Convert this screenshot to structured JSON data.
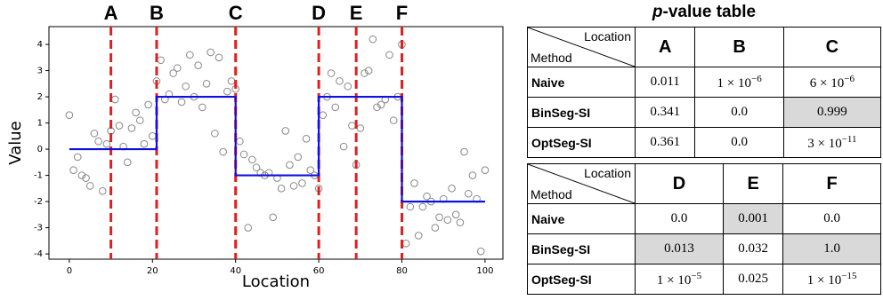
{
  "chart_data": {
    "type": "scatter",
    "xlabel": "Location",
    "ylabel": "Value",
    "xlim": [
      -4.9,
      104.3
    ],
    "ylim": [
      -4.2,
      4.68
    ],
    "xticks": [
      0,
      20,
      40,
      60,
      80,
      100
    ],
    "yticks": [
      -4,
      -3,
      -2,
      -1,
      0,
      1,
      2,
      3,
      4
    ],
    "series": [
      {
        "kind": "points",
        "color": "#888888",
        "x": [
          0,
          1,
          2,
          3,
          4,
          5,
          6,
          7,
          8,
          9,
          10,
          11,
          12,
          13,
          14,
          15,
          16,
          17,
          18,
          19,
          20,
          21,
          22,
          23,
          24,
          25,
          26,
          27,
          28,
          29,
          30,
          31,
          32,
          33,
          34,
          35,
          36,
          37,
          38,
          39,
          40,
          41,
          42,
          43,
          44,
          45,
          46,
          47,
          48,
          49,
          50,
          51,
          52,
          53,
          54,
          55,
          56,
          57,
          58,
          59,
          60,
          61,
          62,
          63,
          64,
          65,
          66,
          67,
          68,
          69,
          70,
          71,
          72,
          73,
          74,
          75,
          76,
          77,
          78,
          79,
          80,
          81,
          82,
          83,
          84,
          85,
          86,
          87,
          88,
          89,
          90,
          91,
          92,
          93,
          94,
          95,
          96,
          97,
          98,
          99,
          100
        ],
        "values": [
          1.3,
          -0.8,
          -0.3,
          -1.0,
          -1.1,
          -1.4,
          0.6,
          0.3,
          -1.6,
          0.2,
          0.7,
          1.9,
          0.9,
          0.1,
          -0.5,
          0.8,
          1.4,
          1.1,
          0.2,
          1.7,
          0.5,
          2.6,
          3.4,
          1.9,
          2.1,
          2.9,
          3.1,
          1.8,
          2.4,
          3.6,
          2.0,
          3.2,
          1.6,
          2.5,
          3.7,
          0.6,
          3.5,
          -0.1,
          2.2,
          2.6,
          2.3,
          0.3,
          -0.2,
          -3.0,
          -0.4,
          -0.7,
          -0.9,
          -1.0,
          -0.9,
          -2.6,
          -1.1,
          -1.5,
          0.7,
          -0.6,
          -1.4,
          -0.3,
          -1.3,
          0.4,
          -0.8,
          -1.0,
          -1.5,
          1.3,
          2.0,
          2.9,
          1.6,
          2.6,
          0.1,
          2.4,
          0.9,
          -0.6,
          0.8,
          2.9,
          3.0,
          4.2,
          1.6,
          1.7,
          1.9,
          3.6,
          1.1,
          2.0,
          4.0,
          -3.6,
          -2.2,
          -1.3,
          -3.3,
          -2.2,
          -1.8,
          -2.0,
          -3.0,
          -2.6,
          -1.9,
          -2.7,
          -1.5,
          -2.5,
          -2.8,
          -0.1,
          -1.7,
          -1.0,
          -1.9,
          -3.9,
          -0.8
        ]
      },
      {
        "kind": "line",
        "color": "#1010e0",
        "x": [
          0,
          21,
          21,
          40,
          40,
          60,
          60,
          80,
          80,
          100
        ],
        "values": [
          0,
          0,
          2,
          2,
          -1,
          -1,
          2,
          2,
          -2,
          -2
        ]
      }
    ],
    "vlines": {
      "color": "#e02020",
      "items": [
        {
          "x": 10,
          "label": "A"
        },
        {
          "x": 21,
          "label": "B"
        },
        {
          "x": 40,
          "label": "C"
        },
        {
          "x": 60,
          "label": "D"
        },
        {
          "x": 69,
          "label": "E"
        },
        {
          "x": 80,
          "label": "F"
        }
      ]
    }
  },
  "tables": {
    "title": {
      "italic": "p",
      "rest": "-value table"
    },
    "corner": {
      "top": "Location",
      "bottom": "Method"
    },
    "list": [
      {
        "columns": [
          "A",
          "B",
          "C"
        ],
        "rows": [
          {
            "method": "Naive",
            "cells": [
              {
                "text": "0.011"
              },
              {
                "base": "1 × 10",
                "exp": "−6"
              },
              {
                "base": "6 × 10",
                "exp": "−6"
              }
            ]
          },
          {
            "method": "BinSeg-SI",
            "cells": [
              {
                "text": "0.341"
              },
              {
                "text": "0.0"
              },
              {
                "text": "0.999",
                "shaded": true
              }
            ]
          },
          {
            "method": "OptSeg-SI",
            "cells": [
              {
                "text": "0.361"
              },
              {
                "text": "0.0"
              },
              {
                "base": "3 × 10",
                "exp": "−11"
              }
            ]
          }
        ]
      },
      {
        "columns": [
          "D",
          "E",
          "F"
        ],
        "rows": [
          {
            "method": "Naive",
            "cells": [
              {
                "text": "0.0"
              },
              {
                "text": "0.001",
                "shaded": true
              },
              {
                "text": "0.0"
              }
            ]
          },
          {
            "method": "BinSeg-SI",
            "cells": [
              {
                "text": "0.013",
                "shaded": true
              },
              {
                "text": "0.032"
              },
              {
                "text": "1.0",
                "shaded": true
              }
            ]
          },
          {
            "method": "OptSeg-SI",
            "cells": [
              {
                "base": "1 × 10",
                "exp": "−5"
              },
              {
                "text": "0.025"
              },
              {
                "base": "1 × 10",
                "exp": "−15"
              }
            ]
          }
        ]
      }
    ]
  }
}
